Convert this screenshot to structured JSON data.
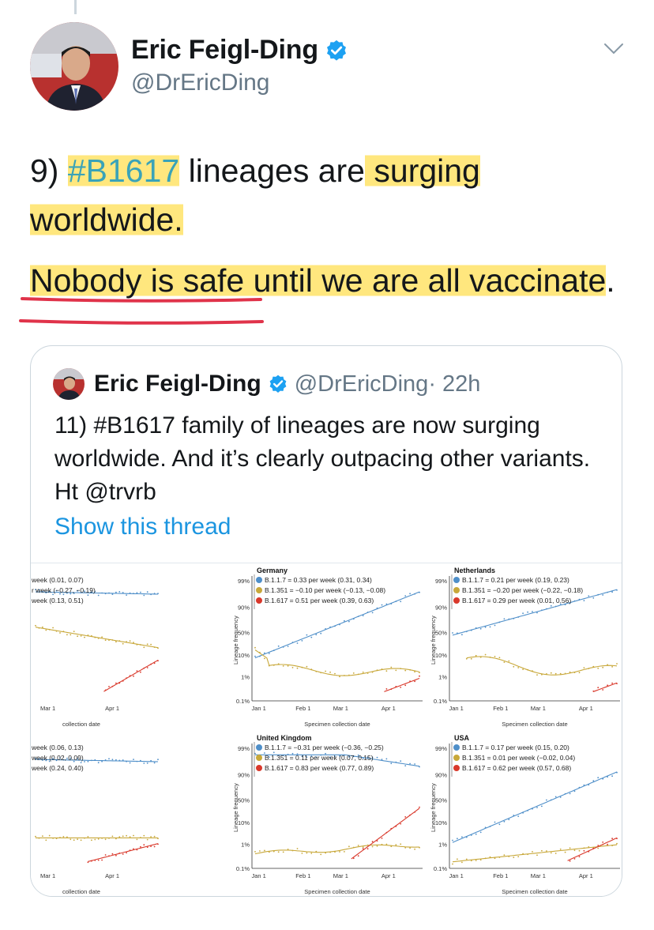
{
  "tweet": {
    "author_name": "Eric Feigl-Ding",
    "author_handle": "@DrEricDing",
    "text_prefix": "9) ",
    "hashtag": "#B1617",
    "text_mid": " lineages are",
    "text_hl1": " surging",
    "text_hl2": "worldwide.",
    "para2_hl": "Nobody is safe until we are all vaccinate",
    "para2_end": "."
  },
  "quoted": {
    "author_name": "Eric Feigl-Ding",
    "author_handle": "@DrEricDing",
    "time": "· 22h",
    "text": "11) #B1617 family of lineages are now surging worldwide. And it’s clearly outpacing other variants. Ht @trvrb",
    "link": "Show this thread"
  },
  "colors": {
    "blue": "#4f8fc9",
    "gold": "#c8a83a",
    "red": "#d9382b",
    "highlight": "#ffe05a",
    "underline": "#e0334a"
  },
  "chart_data": [
    {
      "type": "line",
      "title": "",
      "legend": [
        "week (0.01, 0.07)",
        "r week (−0.27, −0.19)",
        "week (0.13, 0.51)"
      ],
      "x_ticks": [
        "Mar 1",
        "Apr 1"
      ],
      "xlabel": "collection date",
      "ylabel": "",
      "y_ticks": []
    },
    {
      "type": "line",
      "title": "Germany",
      "legend": [
        "B.1.1.7 = 0.33 per week (0.31, 0.34)",
        "B.1.351 = −0.10 per week (−0.13, −0.08)",
        "B.1.617 = 0.51 per week (0.39, 0.63)"
      ],
      "x_ticks": [
        "Jan 1",
        "Feb 1",
        "Mar 1",
        "Apr 1"
      ],
      "xlabel": "Specimen collection date",
      "ylabel": "Lineage frequency",
      "y_ticks": [
        "99%",
        "90%",
        "50%",
        "10%",
        "1%",
        "0.1%"
      ]
    },
    {
      "type": "line",
      "title": "Netherlands",
      "legend": [
        "B.1.1.7 = 0.21 per week (0.19, 0.23)",
        "B.1.351 = −0.20 per week (−0.22, −0.18)",
        "B.1.617 = 0.29 per week (0.01, 0.56)"
      ],
      "x_ticks": [
        "Jan 1",
        "Feb 1",
        "Mar 1",
        "Apr 1"
      ],
      "xlabel": "Specimen collection date",
      "ylabel": "Lineage frequency",
      "y_ticks": [
        "99%",
        "90%",
        "50%",
        "10%",
        "1%",
        "0.1%"
      ]
    },
    {
      "type": "line",
      "title": "",
      "legend": [
        "week (0.06, 0.13)",
        "week (0.02, 0.09)",
        "week (0.24, 0.40)"
      ],
      "x_ticks": [
        "Mar 1",
        "Apr 1"
      ],
      "xlabel": "collection date",
      "ylabel": "",
      "y_ticks": []
    },
    {
      "type": "line",
      "title": "United Kingdom",
      "legend": [
        "B.1.1.7 = −0.31 per week (−0.36, −0.25)",
        "B.1.351 = 0.11 per week (0.07, 0.15)",
        "B.1.617 = 0.83 per week (0.77, 0.89)"
      ],
      "x_ticks": [
        "Jan 1",
        "Feb 1",
        "Mar 1",
        "Apr 1"
      ],
      "xlabel": "Specimen collection date",
      "ylabel": "Lineage frequency",
      "y_ticks": [
        "99%",
        "90%",
        "50%",
        "10%",
        "1%",
        "0.1%"
      ]
    },
    {
      "type": "line",
      "title": "USA",
      "legend": [
        "B.1.1.7 = 0.17 per week (0.15, 0.20)",
        "B.1.351 = 0.01 per week (−0.02, 0.04)",
        "B.1.617 = 0.62 per week (0.57, 0.68)"
      ],
      "x_ticks": [
        "Jan 1",
        "Feb 1",
        "Mar 1",
        "Apr 1"
      ],
      "xlabel": "Specimen collection date",
      "ylabel": "Lineage frequency",
      "y_ticks": [
        "99%",
        "90%",
        "50%",
        "10%",
        "1%",
        "0.1%"
      ]
    }
  ]
}
